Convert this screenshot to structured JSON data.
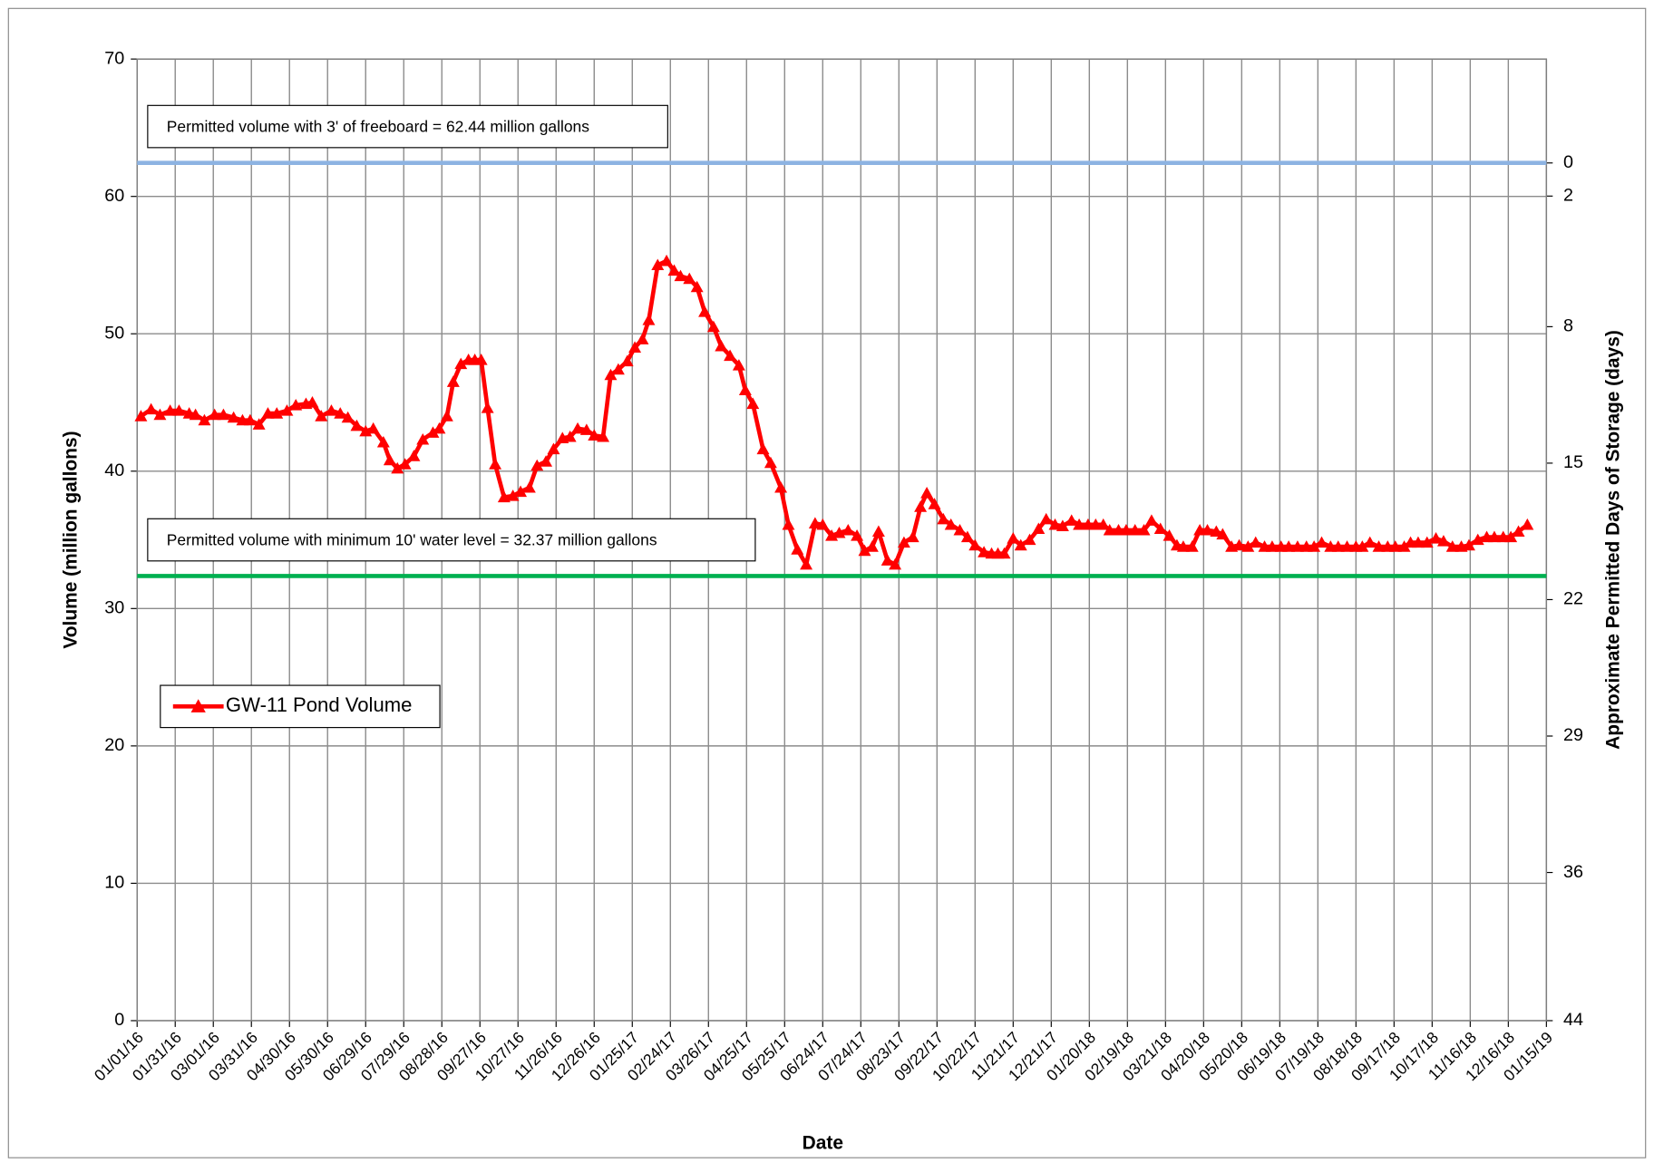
{
  "chart_data": {
    "type": "line",
    "xlabel": "Date",
    "ylabel": "Volume (million gallons)",
    "y2label": "Approximate Permitted Days of Storage (days)",
    "xlim": [
      "01/01/16",
      "01/15/19"
    ],
    "xticks": [
      "01/01/16",
      "01/31/16",
      "03/01/16",
      "03/31/16",
      "04/30/16",
      "05/30/16",
      "06/29/16",
      "07/29/16",
      "08/28/16",
      "09/27/16",
      "10/27/16",
      "11/26/16",
      "12/26/16",
      "01/25/17",
      "02/24/17",
      "03/26/17",
      "04/25/17",
      "05/25/17",
      "06/24/17",
      "07/24/17",
      "08/23/17",
      "09/22/17",
      "10/22/17",
      "11/21/17",
      "12/21/17",
      "01/20/18",
      "02/19/18",
      "03/21/18",
      "04/20/18",
      "05/20/18",
      "06/19/18",
      "07/19/18",
      "08/18/18",
      "09/17/18",
      "10/17/18",
      "11/16/18",
      "12/16/18",
      "01/15/19"
    ],
    "ylim": [
      0,
      70
    ],
    "yticks": [
      0,
      10,
      20,
      30,
      40,
      50,
      60,
      70
    ],
    "y2lim": [
      44,
      -5.33
    ],
    "y2ticks": [
      {
        "value": 0,
        "label": "0"
      },
      {
        "value": 1.7,
        "label": "2"
      },
      {
        "value": 8.4,
        "label": "8"
      },
      {
        "value": 15.4,
        "label": "15"
      },
      {
        "value": 22.4,
        "label": "22"
      },
      {
        "value": 29.4,
        "label": "29"
      },
      {
        "value": 36.4,
        "label": "36"
      },
      {
        "value": 44,
        "label": "44"
      }
    ],
    "grid": true,
    "legend_position": "center left",
    "reference_lines": [
      {
        "value": 62.44,
        "color": "#8db3e2",
        "label": "Permitted volume with 3' of freeboard = 62.44 million gallons"
      },
      {
        "value": 32.37,
        "color": "#00b050",
        "label": "Permitted volume with minimum 10' water level = 32.37 million gallons"
      }
    ],
    "x": [
      "01/04/16",
      "01/12/16",
      "01/19/16",
      "01/27/16",
      "02/03/16",
      "02/11/16",
      "02/16/16",
      "02/23/16",
      "03/02/16",
      "03/09/16",
      "03/17/16",
      "03/24/16",
      "03/30/16",
      "04/06/16",
      "04/13/16",
      "04/20/16",
      "04/28/16",
      "05/05/16",
      "05/13/16",
      "05/18/16",
      "05/25/16",
      "06/02/16",
      "06/09/16",
      "06/15/16",
      "06/22/16",
      "06/29/16",
      "07/05/16",
      "07/13/16",
      "07/18/16",
      "07/24/16",
      "07/30/16",
      "08/06/16",
      "08/13/16",
      "08/21/16",
      "08/26/16",
      "09/01/16",
      "09/06/16",
      "09/12/16",
      "09/18/16",
      "09/23/16",
      "09/28/16",
      "10/03/16",
      "10/09/16",
      "10/16/16",
      "10/23/16",
      "10/29/16",
      "11/05/16",
      "11/11/16",
      "11/18/16",
      "11/24/16",
      "12/01/16",
      "12/07/16",
      "12/13/16",
      "12/20/16",
      "12/26/16",
      "01/02/17",
      "01/08/17",
      "01/14/17",
      "01/21/17",
      "01/27/17",
      "02/02/17",
      "02/07/17",
      "02/14/17",
      "02/21/17",
      "02/27/17",
      "03/04/17",
      "03/11/17",
      "03/17/17",
      "03/23/17",
      "03/30/17",
      "04/05/17",
      "04/12/17",
      "04/19/17",
      "04/24/17",
      "04/30/17",
      "05/08/17",
      "05/14/17",
      "05/22/17",
      "05/28/17",
      "06/04/17",
      "06/11/17",
      "06/18/17",
      "06/24/17",
      "07/01/17",
      "07/07/17",
      "07/14/17",
      "07/21/17",
      "07/27/17",
      "08/02/17",
      "08/07/17",
      "08/14/17",
      "08/20/17",
      "08/27/17",
      "09/03/17",
      "09/09/17",
      "09/14/17",
      "09/20/17",
      "09/27/17",
      "10/03/17",
      "10/10/17",
      "10/16/17",
      "10/22/17",
      "10/29/17",
      "11/04/17",
      "11/09/17",
      "11/14/17",
      "11/21/17",
      "11/27/17",
      "12/04/17",
      "12/11/17",
      "12/17/17",
      "12/24/17",
      "12/30/17",
      "01/06/18",
      "01/12/18",
      "01/19/18",
      "01/25/18",
      "01/31/18",
      "02/05/18",
      "02/12/18",
      "02/18/18",
      "02/25/18",
      "03/04/18",
      "03/10/18",
      "03/17/18",
      "03/24/18",
      "03/30/18",
      "04/04/18",
      "04/11/18",
      "04/17/18",
      "04/23/18",
      "04/30/18",
      "05/05/18",
      "05/12/18",
      "05/18/18",
      "05/25/18",
      "05/31/18",
      "06/07/18",
      "06/13/18",
      "06/20/18",
      "06/26/18",
      "07/03/18",
      "07/10/18",
      "07/16/18",
      "07/22/18",
      "07/29/18",
      "08/04/18",
      "08/11/18",
      "08/18/18",
      "08/23/18",
      "08/29/18",
      "09/05/18",
      "09/12/18",
      "09/18/18",
      "09/25/18",
      "09/30/18",
      "10/06/18",
      "10/13/18",
      "10/20/18",
      "10/26/18",
      "11/02/18",
      "11/09/18",
      "11/15/18",
      "11/22/18",
      "11/29/18",
      "12/05/18",
      "12/12/18",
      "12/18/18",
      "12/24/18",
      "12/31/18"
    ],
    "series": [
      {
        "name": "GW-11 Pond Volume",
        "color": "#ff0000",
        "values": [
          44.0,
          44.5,
          44.1,
          44.4,
          44.4,
          44.2,
          44.1,
          43.7,
          44.1,
          44.1,
          43.9,
          43.7,
          43.7,
          43.4,
          44.2,
          44.2,
          44.4,
          44.8,
          44.9,
          45.0,
          44.0,
          44.4,
          44.2,
          43.9,
          43.3,
          42.9,
          43.1,
          42.1,
          40.8,
          40.2,
          40.5,
          41.1,
          42.3,
          42.8,
          43.1,
          44.0,
          46.5,
          47.8,
          48.1,
          48.1,
          48.1,
          44.6,
          40.5,
          38.1,
          38.2,
          38.5,
          38.8,
          40.4,
          40.7,
          41.6,
          42.4,
          42.5,
          43.1,
          43.0,
          42.6,
          42.5,
          47.0,
          47.4,
          48.0,
          49.0,
          49.6,
          51.0,
          55.0,
          55.3,
          54.6,
          54.2,
          54.0,
          53.4,
          51.6,
          50.5,
          49.1,
          48.4,
          47.7,
          45.9,
          44.9,
          41.6,
          40.6,
          38.8,
          36.1,
          34.3,
          33.2,
          36.2,
          36.1,
          35.3,
          35.5,
          35.7,
          35.3,
          34.2,
          34.5,
          35.6,
          33.5,
          33.2,
          34.8,
          35.2,
          37.4,
          38.4,
          37.6,
          36.5,
          36.1,
          35.7,
          35.2,
          34.6,
          34.1,
          34.0,
          34.0,
          34.0,
          35.1,
          34.6,
          35.0,
          35.8,
          36.5,
          36.1,
          36.0,
          36.4,
          36.1,
          36.1,
          36.1,
          36.1,
          35.7,
          35.7,
          35.7,
          35.7,
          35.7,
          36.4,
          35.8,
          35.3,
          34.6,
          34.5,
          34.5,
          35.7,
          35.7,
          35.6,
          35.4,
          34.5,
          34.6,
          34.5,
          34.8,
          34.5,
          34.5,
          34.5,
          34.5,
          34.5,
          34.5,
          34.5,
          34.8,
          34.5,
          34.5,
          34.5,
          34.5,
          34.5,
          34.8,
          34.5,
          34.5,
          34.5,
          34.5,
          34.8,
          34.8,
          34.8,
          35.1,
          34.9,
          34.5,
          34.5,
          34.6,
          35.0,
          35.2,
          35.2,
          35.2,
          35.2,
          35.6,
          36.1
        ]
      }
    ]
  }
}
